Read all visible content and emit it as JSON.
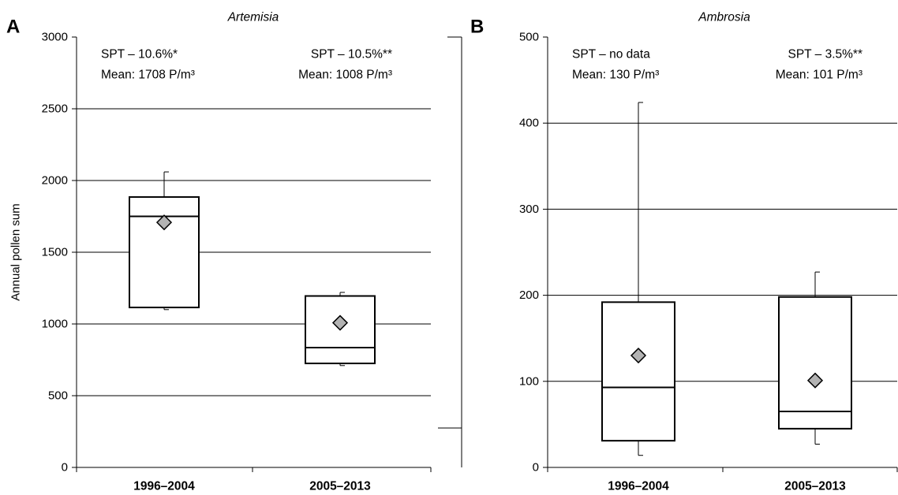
{
  "chart_data": [
    {
      "panel_label": "A",
      "type": "box",
      "title": "Artemisia",
      "ylabel": "Annual pollen sum",
      "xlabel": "",
      "ylim": [
        0,
        3000
      ],
      "yticks": [
        0,
        500,
        1000,
        1500,
        2000,
        2500,
        3000
      ],
      "grid": true,
      "mean_marker_color": "#b3b3b3",
      "categories": [
        "1996–2004",
        "2005–2013"
      ],
      "boxes": [
        {
          "whisker_low": 1100,
          "q1": 1115,
          "median": 1750,
          "q3": 1885,
          "whisker_high": 2060,
          "mean": 1708
        },
        {
          "whisker_low": 710,
          "q1": 725,
          "median": 835,
          "q3": 1195,
          "whisker_high": 1220,
          "mean": 1008
        }
      ],
      "annotations": [
        {
          "lines": [
            "SPT – 10.6%*",
            "Mean: 1708 P/m³"
          ]
        },
        {
          "lines": [
            "SPT – 10.5%**",
            "Mean: 1008 P/m³"
          ]
        }
      ]
    },
    {
      "panel_label": "B",
      "type": "box",
      "title": "Ambrosia",
      "xlabel": "",
      "ylim": [
        0,
        500
      ],
      "yticks": [
        0,
        100,
        200,
        300,
        400,
        500
      ],
      "grid": true,
      "mean_marker_color": "#b3b3b3",
      "categories": [
        "1996–2004",
        "2005–2013"
      ],
      "boxes": [
        {
          "whisker_low": 14,
          "q1": 31,
          "median": 93,
          "q3": 192,
          "whisker_high": 424,
          "mean": 130
        },
        {
          "whisker_low": 27,
          "q1": 45,
          "median": 65,
          "q3": 198,
          "whisker_high": 227,
          "mean": 101
        }
      ],
      "annotations": [
        {
          "lines": [
            "SPT – no data",
            "Mean: 130 P/m³"
          ]
        },
        {
          "lines": [
            "SPT – 3.5%**",
            "Mean: 101 P/m³"
          ]
        }
      ]
    }
  ]
}
